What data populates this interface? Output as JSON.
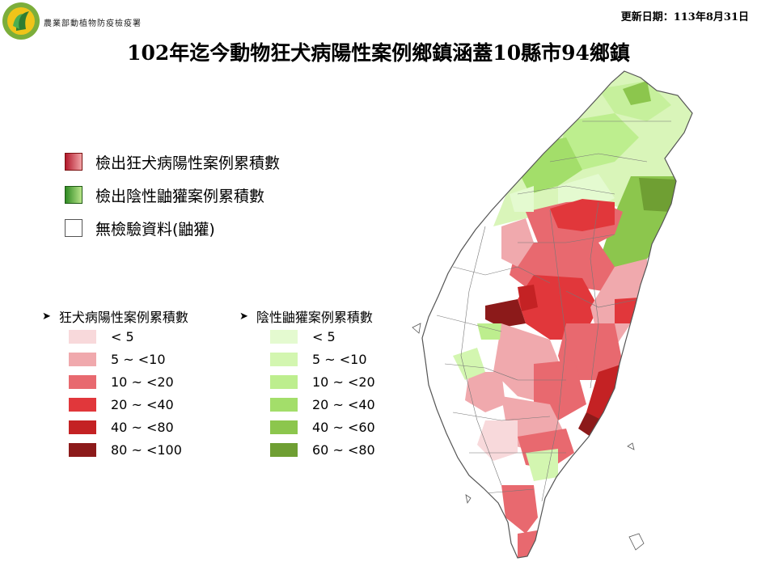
{
  "header": {
    "org_name": "農業部動植物防疫檢疫署",
    "update_date": "更新日期：113年8月31日",
    "title": "102年迄今動物狂犬病陽性案例鄉鎮涵蓋10縣市94鄉鎮"
  },
  "legend_main": [
    {
      "label": "檢出狂犬病陽性案例累積數",
      "kind": "red"
    },
    {
      "label": "檢出陰性鼬獾案例累積數",
      "kind": "green"
    },
    {
      "label": "無檢驗資料(鼬獾)",
      "kind": "white"
    }
  ],
  "scale_red": {
    "title": "狂犬病陽性案例累積數",
    "items": [
      {
        "label": "< 5",
        "color": "#f8d9db"
      },
      {
        "label": "5 ~ <10",
        "color": "#f0a9ad"
      },
      {
        "label": "10 ~ <20",
        "color": "#e8696f"
      },
      {
        "label": "20 ~ <40",
        "color": "#e1373b"
      },
      {
        "label": "40 ~ <80",
        "color": "#c42224"
      },
      {
        "label": "80 ~ <100",
        "color": "#8c1a1a"
      }
    ]
  },
  "scale_green": {
    "title": "陰性鼬獾案例累積數",
    "items": [
      {
        "label": "< 5",
        "color": "#e4fad0"
      },
      {
        "label": "5 ~ <10",
        "color": "#d3f6b0"
      },
      {
        "label": "10 ~ <20",
        "color": "#bdee8e"
      },
      {
        "label": "20 ~ <40",
        "color": "#a3de6a"
      },
      {
        "label": "40 ~ <60",
        "color": "#8cc64d"
      },
      {
        "label": "60 ~ <80",
        "color": "#6f9f33"
      }
    ]
  },
  "icons": {
    "logo": "moa-logo-icon",
    "arrow": "arrow-right-icon"
  }
}
